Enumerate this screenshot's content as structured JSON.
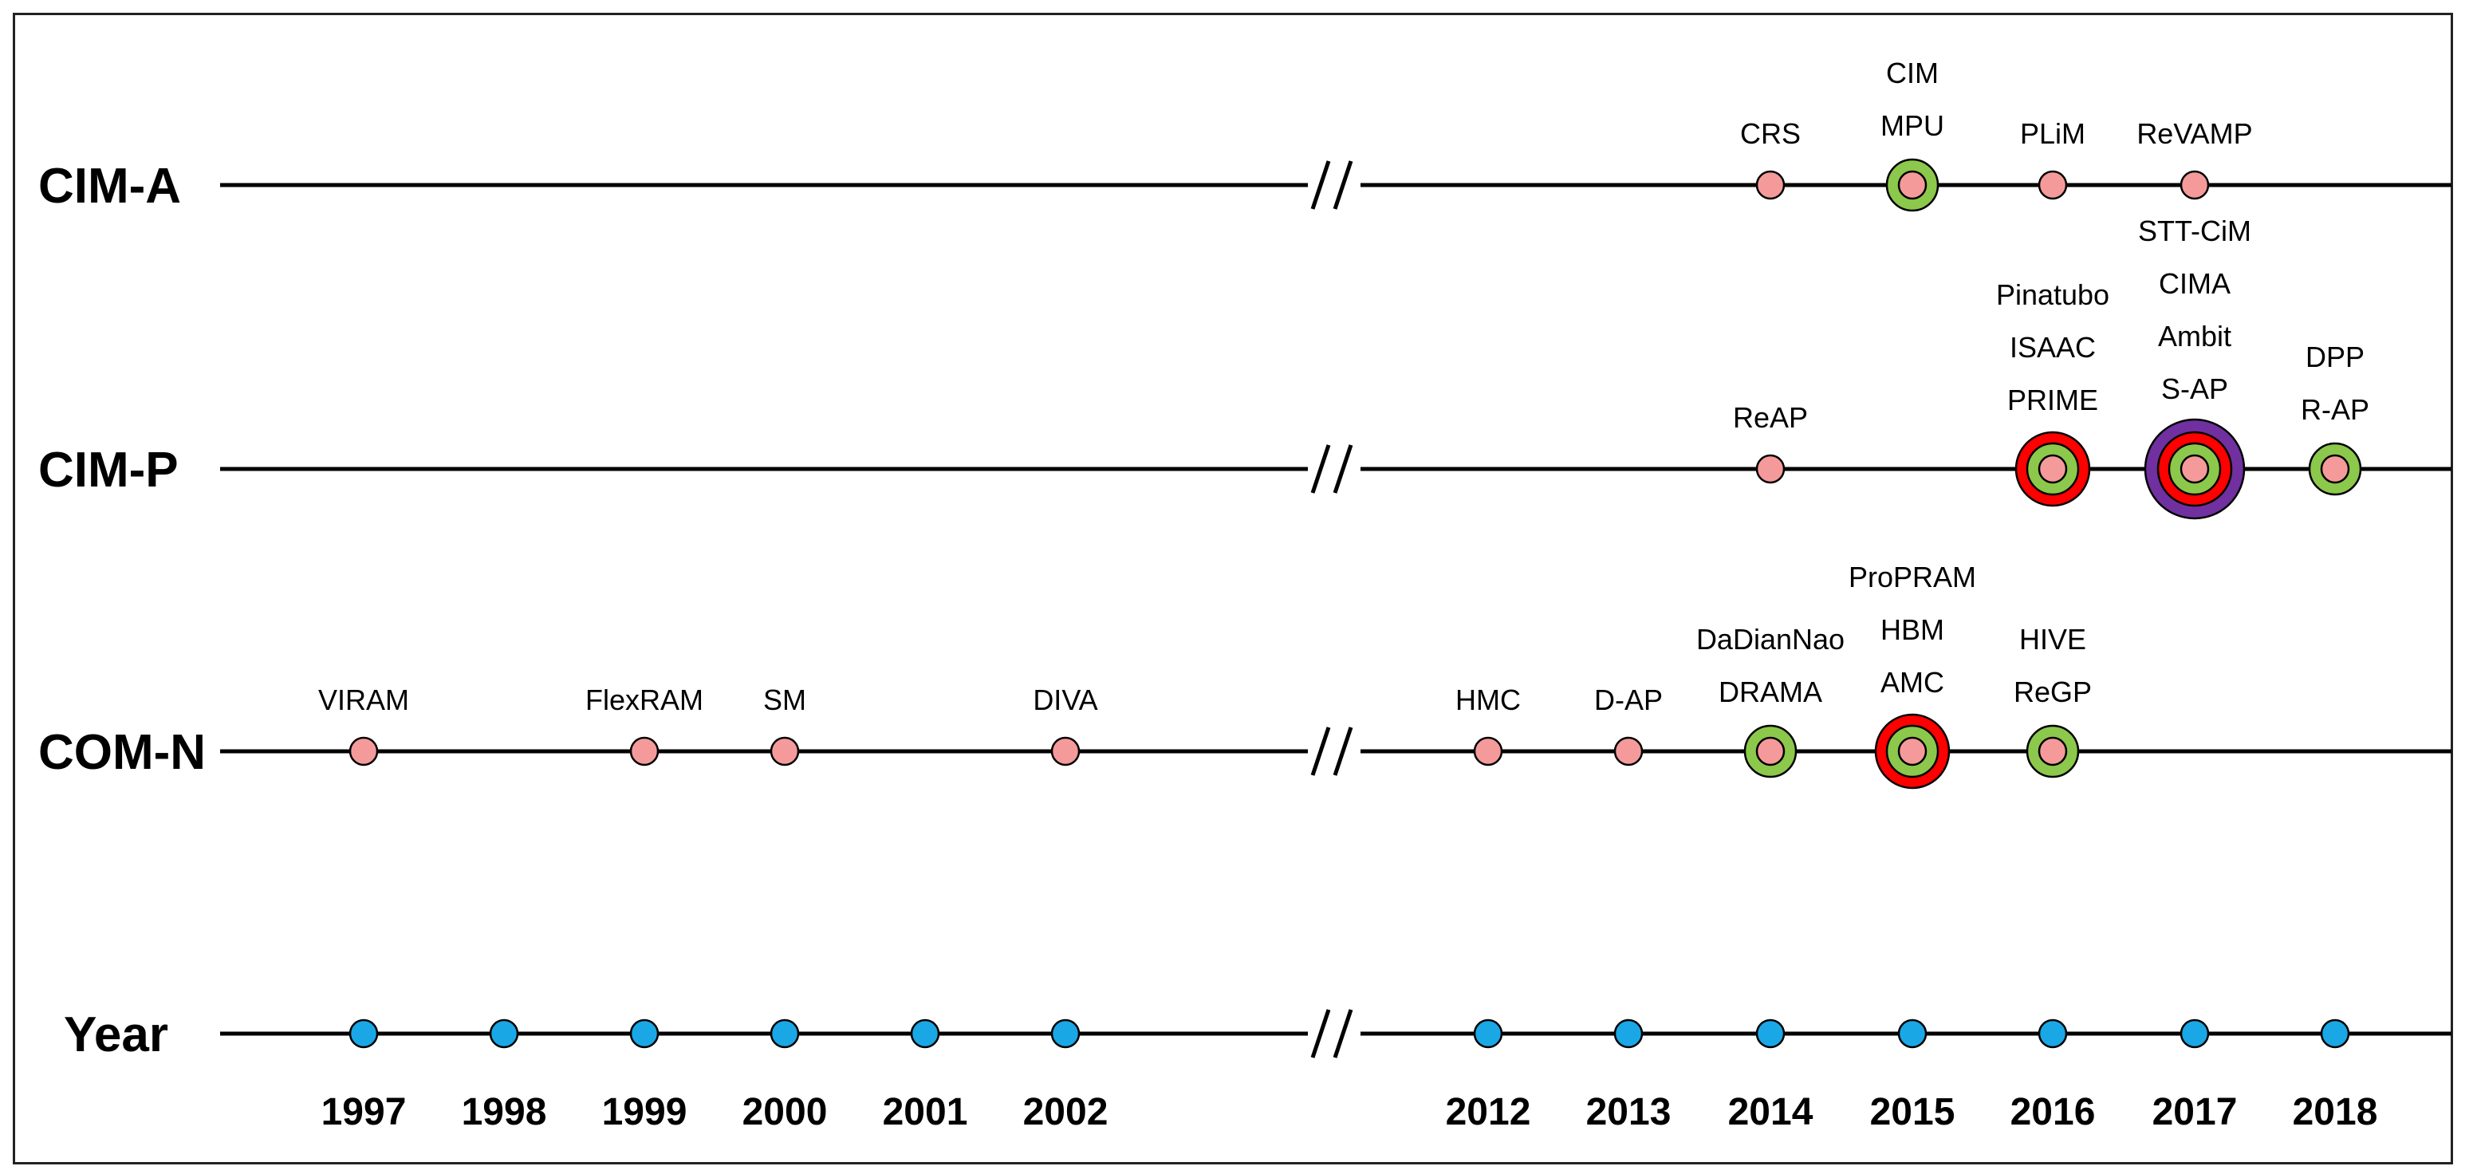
{
  "colors": {
    "line": "#000000",
    "year_dot": "#1aa7e6",
    "event_dot": "#f59a9a",
    "ring_green": "#8cc84b",
    "ring_red": "#ff0000",
    "ring_purple": "#7030a0"
  },
  "chart_data": {
    "type": "timeline",
    "break_between": [
      2002,
      2012
    ],
    "years": [
      1997,
      1998,
      1999,
      2000,
      2001,
      2002,
      2012,
      2013,
      2014,
      2015,
      2016,
      2017,
      2018
    ],
    "rows": [
      {
        "label": "CIM-A",
        "events": [
          {
            "year": 2014,
            "names": [
              "CRS"
            ],
            "count": 1
          },
          {
            "year": 2015,
            "names": [
              "CIM",
              "MPU"
            ],
            "count": 2
          },
          {
            "year": 2016,
            "names": [
              "PLiM"
            ],
            "count": 1
          },
          {
            "year": 2017,
            "names": [
              "ReVAMP"
            ],
            "count": 1
          }
        ]
      },
      {
        "label": "CIM-P",
        "events": [
          {
            "year": 2014,
            "names": [
              "ReAP"
            ],
            "count": 1
          },
          {
            "year": 2016,
            "names": [
              "Pinatubo",
              "ISAAC",
              "PRIME"
            ],
            "count": 3
          },
          {
            "year": 2017,
            "names": [
              "STT-CiM",
              "CIMA",
              "Ambit",
              "S-AP"
            ],
            "count": 4
          },
          {
            "year": 2018,
            "names": [
              "DPP",
              "R-AP"
            ],
            "count": 2
          }
        ]
      },
      {
        "label": "COM-N",
        "events": [
          {
            "year": 1997,
            "names": [
              "VIRAM"
            ],
            "count": 1
          },
          {
            "year": 1999,
            "names": [
              "FlexRAM"
            ],
            "count": 1
          },
          {
            "year": 2000,
            "names": [
              "SM"
            ],
            "count": 1
          },
          {
            "year": 2002,
            "names": [
              "DIVA"
            ],
            "count": 1
          },
          {
            "year": 2012,
            "names": [
              "HMC"
            ],
            "count": 1
          },
          {
            "year": 2013,
            "names": [
              "D-AP"
            ],
            "count": 1
          },
          {
            "year": 2014,
            "names": [
              "DaDianNao",
              "DRAMA"
            ],
            "count": 2
          },
          {
            "year": 2015,
            "names": [
              "ProPRAM",
              "HBM",
              "AMC"
            ],
            "count": 3
          },
          {
            "year": 2016,
            "names": [
              "HIVE",
              "ReGP"
            ],
            "count": 2
          }
        ]
      }
    ],
    "year_row_label": "Year"
  }
}
